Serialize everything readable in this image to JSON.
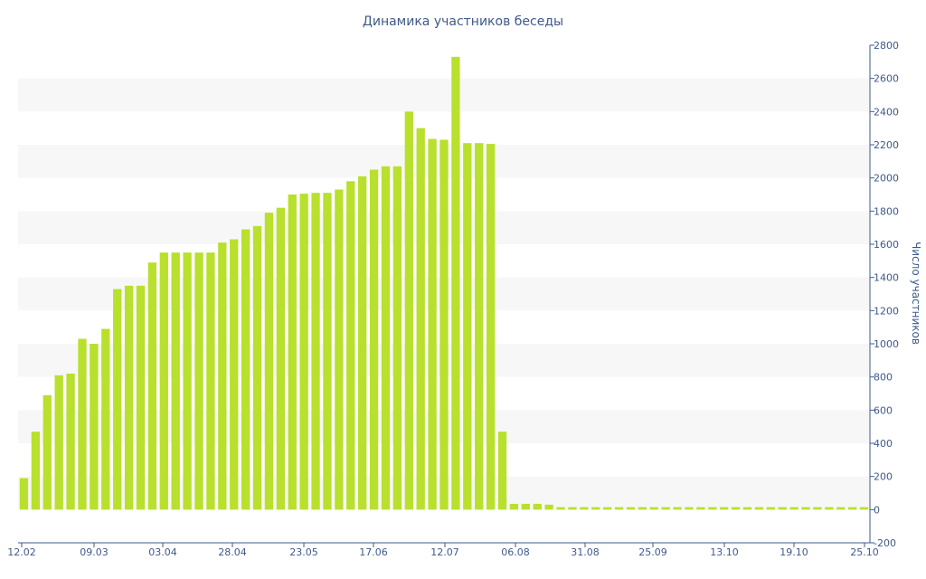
{
  "chart_data": {
    "type": "bar",
    "title": "Динамика участников беседы",
    "xlabel": "",
    "ylabel": "Число участников",
    "ylim": [
      -200,
      2800
    ],
    "y_ticks": [
      2800,
      2600,
      2400,
      2200,
      2000,
      1800,
      1600,
      1400,
      1200,
      1000,
      800,
      600,
      400,
      200,
      0,
      -200
    ],
    "x_tick_labels": [
      "12.02",
      "09.03",
      "03.04",
      "28.04",
      "23.05",
      "17.06",
      "12.07",
      "06.08",
      "31.08",
      "25.09",
      "13.10",
      "19.10",
      "25.10"
    ],
    "y_axis_side": "right",
    "grid": "alternating horizontal bands",
    "legend": "none",
    "values": [
      190,
      470,
      690,
      810,
      820,
      1030,
      1000,
      1090,
      1330,
      1350,
      1350,
      1490,
      1550,
      1550,
      1550,
      1550,
      1550,
      1610,
      1630,
      1690,
      1710,
      1790,
      1820,
      1900,
      1905,
      1910,
      1910,
      1930,
      1980,
      2010,
      2050,
      2070,
      2070,
      2400,
      2300,
      2235,
      2230,
      2730,
      2210,
      2210,
      2205,
      470,
      35,
      35,
      35,
      30,
      15,
      15,
      15,
      15,
      15,
      15,
      15,
      15,
      15,
      15,
      15,
      15,
      15,
      15,
      15,
      15,
      15,
      15,
      15,
      15,
      15,
      15,
      15,
      15,
      15,
      15,
      15
    ],
    "colors": {
      "bar": "#b8e02c",
      "axis": "#3f5a8a",
      "band": "#f7f7f7"
    }
  }
}
